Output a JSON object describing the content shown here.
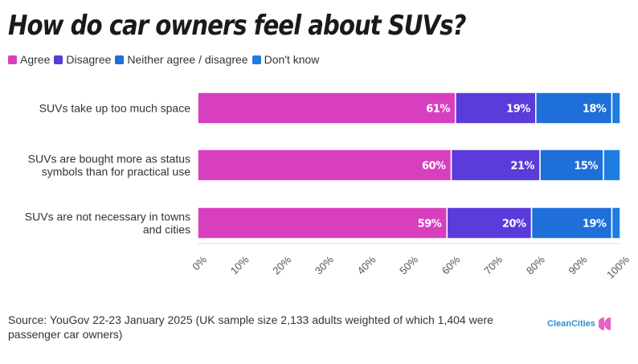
{
  "chart_data": {
    "type": "bar",
    "orientation": "horizontal",
    "stacked": true,
    "title": "How do car owners feel about SUVs?",
    "categories": [
      [
        "SUVs take up too much space"
      ],
      [
        "SUVs are bought more as status",
        "symbols than for practical use"
      ],
      [
        "SUVs are not necessary in towns",
        "and cities"
      ]
    ],
    "series": [
      {
        "name": "Agree",
        "color": "#d83fbf",
        "values": [
          61,
          60,
          59
        ]
      },
      {
        "name": "Disagree",
        "color": "#5b3bd9",
        "values": [
          19,
          21,
          20
        ]
      },
      {
        "name": "Neither agree / disagree",
        "color": "#1e6fd8",
        "values": [
          18,
          15,
          19
        ]
      },
      {
        "name": "Don't know",
        "color": "#1f7de0",
        "values": [
          2,
          4,
          2
        ]
      }
    ],
    "data_labels": [
      [
        "61%",
        "19%",
        "18%",
        ""
      ],
      [
        "60%",
        "21%",
        "15%",
        ""
      ],
      [
        "59%",
        "20%",
        "19%",
        ""
      ]
    ],
    "xlim": [
      0,
      100
    ],
    "xticks": [
      "0%",
      "10%",
      "20%",
      "30%",
      "40%",
      "50%",
      "60%",
      "70%",
      "80%",
      "90%",
      "100%"
    ],
    "xlabel": "",
    "ylabel": "",
    "legend_position": "top-left",
    "grid": false
  },
  "legend": {
    "items": [
      {
        "label": "Agree",
        "color": "#d83fbf"
      },
      {
        "label": "Disagree",
        "color": "#5b3bd9"
      },
      {
        "label": "Neither agree / disagree",
        "color": "#1e6fd8"
      },
      {
        "label": "Don't know",
        "color": "#1f7de0"
      }
    ]
  },
  "source": "Source: YouGov 22-23 January 2025 (UK sample size 2,133 adults weighted of which 1,404 were passenger car owners)",
  "logo": {
    "text": "CleanCities",
    "color": "#e85fc8",
    "text_color": "#2f8fd6"
  }
}
